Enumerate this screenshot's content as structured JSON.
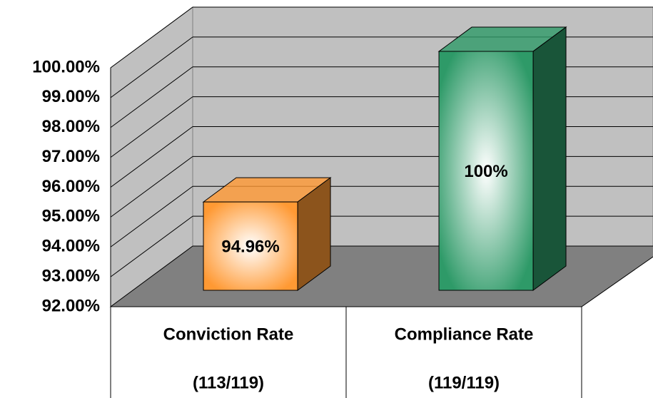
{
  "chart_data": {
    "type": "bar3d",
    "categories": [
      "Conviction Rate",
      "Compliance Rate"
    ],
    "category_sublabels": [
      "(113/119)",
      "(119/119)"
    ],
    "values": [
      94.96,
      100
    ],
    "value_labels": [
      "94.96%",
      "100%"
    ],
    "colors": [
      "#ff9933",
      "#2e9a68"
    ],
    "ylim": [
      92,
      100
    ],
    "yticks": [
      {
        "value": 92,
        "label": "92.00%"
      },
      {
        "value": 93,
        "label": "93.00%"
      },
      {
        "value": 94,
        "label": "94.00%"
      },
      {
        "value": 95,
        "label": "95.00%"
      },
      {
        "value": 96,
        "label": "96.00%"
      },
      {
        "value": 97,
        "label": "97.00%"
      },
      {
        "value": 98,
        "label": "98.00%"
      },
      {
        "value": 99,
        "label": "99.00%"
      },
      {
        "value": 100,
        "label": "100.00%"
      }
    ],
    "grid": true
  }
}
